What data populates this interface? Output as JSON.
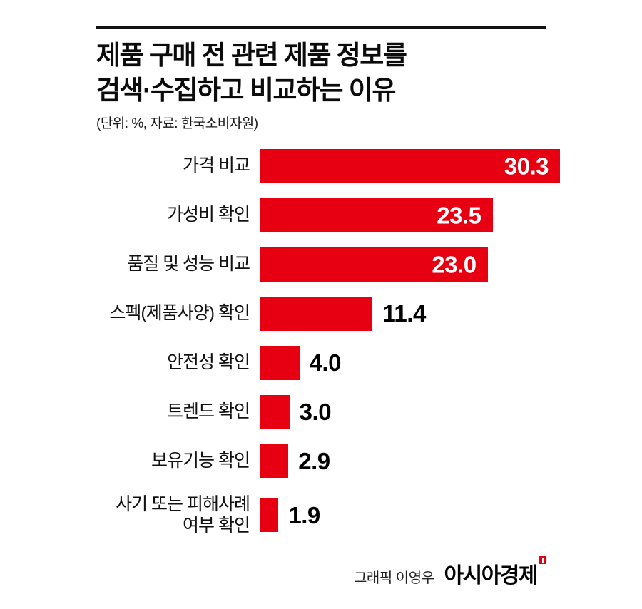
{
  "header": {
    "title": "제품 구매 전 관련 제품 정보를\n검색·수집하고 비교하는 이유",
    "subtitle": "(단위: %, 자료: 한국소비자원)"
  },
  "chart_data": {
    "type": "bar",
    "orientation": "horizontal",
    "title": "제품 구매 전 관련 제품 정보를 검색·수집하고 비교하는 이유",
    "unit": "%",
    "source": "한국소비자원",
    "categories": [
      "가격 비교",
      "가성비 확인",
      "품질 및 성능 비교",
      "스펙(제품사양) 확인",
      "안전성 확인",
      "트렌드 확인",
      "보유기능 확인",
      "사기 또는 피해사례 여부 확인"
    ],
    "values": [
      30.3,
      23.5,
      23.0,
      11.4,
      4.0,
      3.0,
      2.9,
      1.9
    ],
    "value_labels": [
      "30.3",
      "23.5",
      "23.0",
      "11.4",
      "4.0",
      "3.0",
      "2.9",
      "1.9"
    ],
    "bar_color": "#e60012",
    "xlim": [
      0,
      30.3
    ],
    "value_inside_threshold": 20,
    "grid": false,
    "legend": false
  },
  "footer": {
    "credit": "그래픽 이영우",
    "brand": "아시아경제"
  }
}
